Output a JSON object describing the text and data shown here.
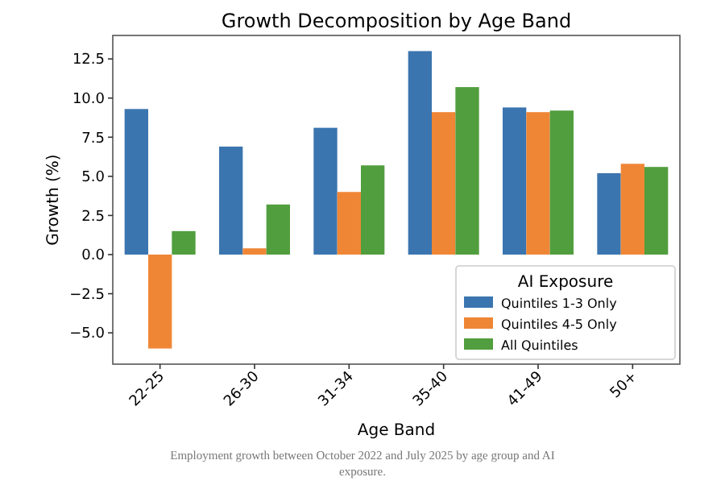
{
  "chart_data": {
    "type": "bar",
    "title": "Growth Decomposition by Age Band",
    "xlabel": "Age Band",
    "ylabel": "Growth (%)",
    "legend_title": "AI Exposure",
    "categories": [
      "22-25",
      "26-30",
      "31-34",
      "35-40",
      "41-49",
      "50+"
    ],
    "series": [
      {
        "name": "Quintiles 1-3 Only",
        "color": "#3b75af",
        "values": [
          9.3,
          6.9,
          8.1,
          13.0,
          9.4,
          5.2
        ]
      },
      {
        "name": "Quintiles 4-5 Only",
        "color": "#ef8636",
        "values": [
          -6.0,
          0.4,
          4.0,
          9.1,
          9.1,
          5.8
        ]
      },
      {
        "name": "All Quintiles",
        "color": "#519e3e",
        "values": [
          1.5,
          3.2,
          5.7,
          10.7,
          9.2,
          5.6
        ]
      }
    ],
    "ylim": [
      -7,
      14
    ],
    "yticks": [
      {
        "value": -5,
        "label": "−5.0"
      },
      {
        "value": -2.5,
        "label": "−2.5"
      },
      {
        "value": 0,
        "label": "0.0"
      },
      {
        "value": 2.5,
        "label": "2.5"
      },
      {
        "value": 5,
        "label": "5.0"
      },
      {
        "value": 7.5,
        "label": "7.5"
      },
      {
        "value": 10,
        "label": "10.0"
      },
      {
        "value": 12.5,
        "label": "12.5"
      }
    ],
    "legend": "bottom right",
    "annotations": [
      "Employment growth between October 2022 and July 2025 by age group and AI exposure."
    ]
  }
}
